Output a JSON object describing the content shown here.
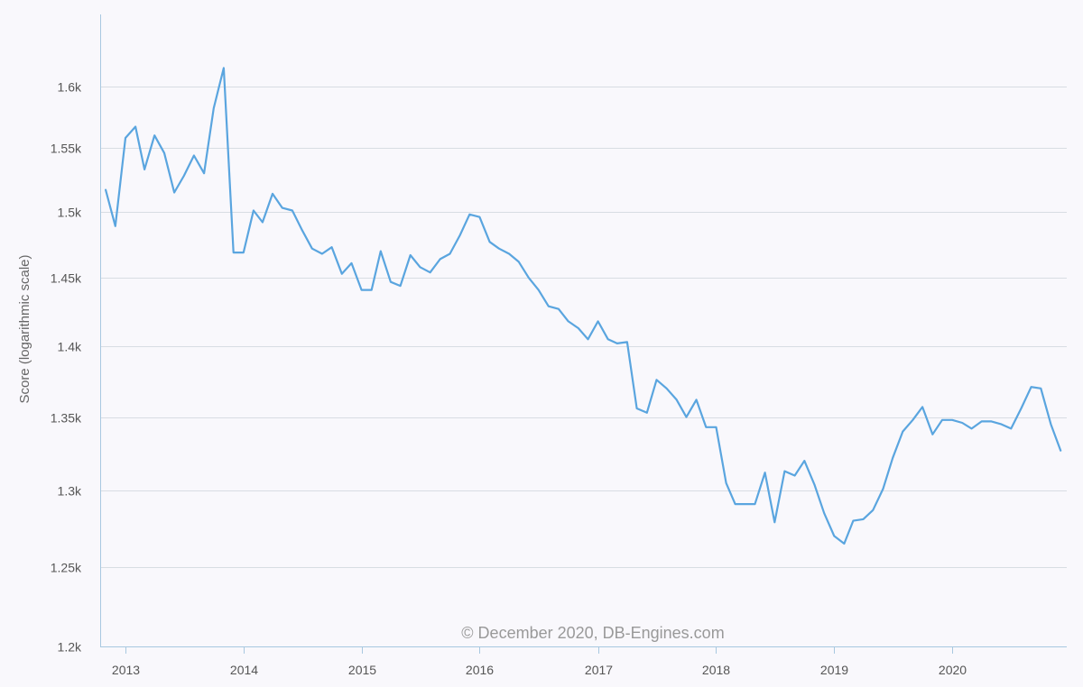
{
  "chart_data": {
    "type": "line",
    "title": "",
    "xlabel": "",
    "ylabel": "Score (logarithmic scale)",
    "y_scale": "log",
    "ylim": [
      1200,
      1660
    ],
    "xlim": [
      "2012-10-15",
      "2020-12-20"
    ],
    "y_ticks": [
      1200,
      1250,
      1300,
      1350,
      1400,
      1450,
      1500,
      1550,
      1600
    ],
    "y_tick_labels": [
      "1.2k",
      "1.25k",
      "1.3k",
      "1.35k",
      "1.4k",
      "1.45k",
      "1.5k",
      "1.55k",
      "1.6k"
    ],
    "x_ticks": [
      "2013-01-01",
      "2014-01-01",
      "2015-01-01",
      "2016-01-01",
      "2017-01-01",
      "2018-01-01",
      "2019-01-01",
      "2020-01-01"
    ],
    "x_tick_labels": [
      "2013",
      "2014",
      "2015",
      "2016",
      "2017",
      "2018",
      "2019",
      "2020"
    ],
    "grid": "horizontal",
    "legend": "none",
    "credit": "© December 2020, DB-Engines.com",
    "colors": {
      "line": "#5aa5df",
      "grid": "#d8dde3",
      "axis": "#a8c8e0",
      "background": "#f9f8fc"
    },
    "series": [
      {
        "x": [
          "2012-11-01",
          "2012-12-01",
          "2013-01-01",
          "2013-02-01",
          "2013-03-01",
          "2013-04-01",
          "2013-05-01",
          "2013-06-01",
          "2013-07-01",
          "2013-08-01",
          "2013-09-01",
          "2013-10-01",
          "2013-11-01",
          "2013-12-01",
          "2014-01-01",
          "2014-02-01",
          "2014-03-01",
          "2014-04-01",
          "2014-05-01",
          "2014-06-01",
          "2014-07-01",
          "2014-08-01",
          "2014-09-01",
          "2014-10-01",
          "2014-11-01",
          "2014-12-01",
          "2015-01-01",
          "2015-02-01",
          "2015-03-01",
          "2015-04-01",
          "2015-05-01",
          "2015-06-01",
          "2015-07-01",
          "2015-08-01",
          "2015-09-01",
          "2015-10-01",
          "2015-11-01",
          "2015-12-01",
          "2016-01-01",
          "2016-02-01",
          "2016-03-01",
          "2016-04-01",
          "2016-05-01",
          "2016-06-01",
          "2016-07-01",
          "2016-08-01",
          "2016-09-01",
          "2016-10-01",
          "2016-11-01",
          "2016-12-01",
          "2017-01-01",
          "2017-02-01",
          "2017-03-01",
          "2017-04-01",
          "2017-05-01",
          "2017-06-01",
          "2017-07-01",
          "2017-08-01",
          "2017-09-01",
          "2017-10-01",
          "2017-11-01",
          "2017-12-01",
          "2018-01-01",
          "2018-02-01",
          "2018-03-01",
          "2018-04-01",
          "2018-05-01",
          "2018-06-01",
          "2018-07-01",
          "2018-08-01",
          "2018-09-01",
          "2018-10-01",
          "2018-11-01",
          "2018-12-01",
          "2019-01-01",
          "2019-02-01",
          "2019-03-01",
          "2019-04-01",
          "2019-05-01",
          "2019-06-01",
          "2019-07-01",
          "2019-08-01",
          "2019-09-01",
          "2019-10-01",
          "2019-11-01",
          "2019-12-01",
          "2020-01-01",
          "2020-02-01",
          "2020-03-01",
          "2020-04-01",
          "2020-05-01",
          "2020-06-01",
          "2020-07-01",
          "2020-08-01",
          "2020-09-01",
          "2020-10-01",
          "2020-11-01",
          "2020-12-01"
        ],
        "values": [
          1517,
          1489,
          1558,
          1567,
          1533,
          1560,
          1546,
          1515,
          1528,
          1544,
          1530,
          1582,
          1615,
          1469,
          1469,
          1501,
          1492,
          1514,
          1503,
          1501,
          1486,
          1472,
          1468,
          1473,
          1453,
          1461,
          1441,
          1441,
          1470,
          1447,
          1444,
          1467,
          1458,
          1454,
          1464,
          1468,
          1482,
          1498,
          1496,
          1477,
          1472,
          1468,
          1462,
          1450,
          1441,
          1429,
          1427,
          1418,
          1413,
          1405,
          1418,
          1405,
          1402,
          1403,
          1356,
          1353,
          1376,
          1370,
          1362,
          1350,
          1362,
          1343,
          1343,
          1305,
          1291,
          1291,
          1291,
          1312,
          1279,
          1313,
          1310,
          1320,
          1304,
          1285,
          1270,
          1265,
          1280,
          1281,
          1287,
          1301,
          1322,
          1340,
          1348,
          1357,
          1338,
          1348,
          1348,
          1346,
          1342,
          1347,
          1347,
          1345,
          1342,
          1356,
          1371,
          1370,
          1345,
          1327
        ]
      }
    ]
  }
}
